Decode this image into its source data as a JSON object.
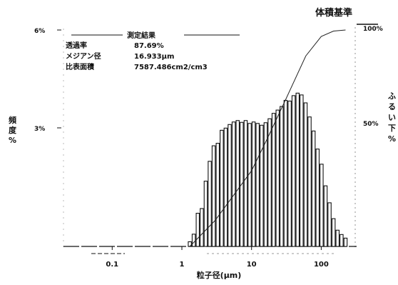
{
  "chart_data": {
    "type": "bar",
    "title": "体積基準",
    "xlabel": "粒子径(μm)",
    "ylabel_left": [
      "頻",
      "度",
      "%"
    ],
    "ylabel_right": [
      "ふ",
      "る",
      "い",
      "下",
      "%"
    ],
    "x_scale": "log",
    "xlim": [
      0.02,
      300
    ],
    "x_ticks": [
      {
        "value": 0.1,
        "label": "0.1"
      },
      {
        "value": 1,
        "label": "1"
      },
      {
        "value": 10,
        "label": "10"
      },
      {
        "value": 100,
        "label": "100"
      }
    ],
    "ylim_left": [
      0,
      6
    ],
    "y_ticks_left": [
      {
        "value": 6,
        "label": "6%"
      },
      {
        "value": 3,
        "label": "3%"
      }
    ],
    "ylim_right": [
      0,
      100
    ],
    "y_ticks_right": [
      {
        "value": 100,
        "label": "100%"
      },
      {
        "value": 50,
        "label": "50%"
      }
    ],
    "measurement": {
      "heading": "測定結果",
      "rows": [
        {
          "label": "透過率",
          "value": "87.69%"
        },
        {
          "label": "メジアン径",
          "value": "16.933μm"
        },
        {
          "label": "比表面積",
          "value": "7587.486cm2/cm3"
        }
      ]
    },
    "series": [
      {
        "kind": "bar",
        "x": [
          1.3,
          1.48,
          1.69,
          1.93,
          2.2,
          2.51,
          2.86,
          3.27,
          3.73,
          4.25,
          4.85,
          5.54,
          6.32,
          7.21,
          8.23,
          9.39,
          10.71,
          12.22,
          13.95,
          15.92,
          18.17,
          20.73,
          23.66,
          27.0,
          30.8,
          35.2,
          40.1,
          45.8,
          52.2,
          59.6,
          68.0,
          77.6,
          88.6,
          101.1,
          115.3,
          131.6,
          150.2,
          171.4,
          195.6,
          223.2
        ],
        "values": [
          0.13,
          0.34,
          0.92,
          1.05,
          1.81,
          2.36,
          2.79,
          2.86,
          3.22,
          3.28,
          3.38,
          3.45,
          3.49,
          3.44,
          3.49,
          3.41,
          3.45,
          3.41,
          3.36,
          3.43,
          3.54,
          3.69,
          3.78,
          3.88,
          4.05,
          4.03,
          4.18,
          4.25,
          4.2,
          3.98,
          3.59,
          3.2,
          2.7,
          2.28,
          1.68,
          1.21,
          0.77,
          0.45,
          0.33,
          0.23
        ]
      },
      {
        "kind": "cumulative-line",
        "x": [
          1.3,
          3.0,
          10.0,
          16.933,
          30.0,
          60.0,
          100.0,
          150.0,
          223.2
        ],
        "values": [
          0,
          12,
          35,
          50,
          67,
          88,
          97,
          99.5,
          100
        ]
      }
    ]
  }
}
